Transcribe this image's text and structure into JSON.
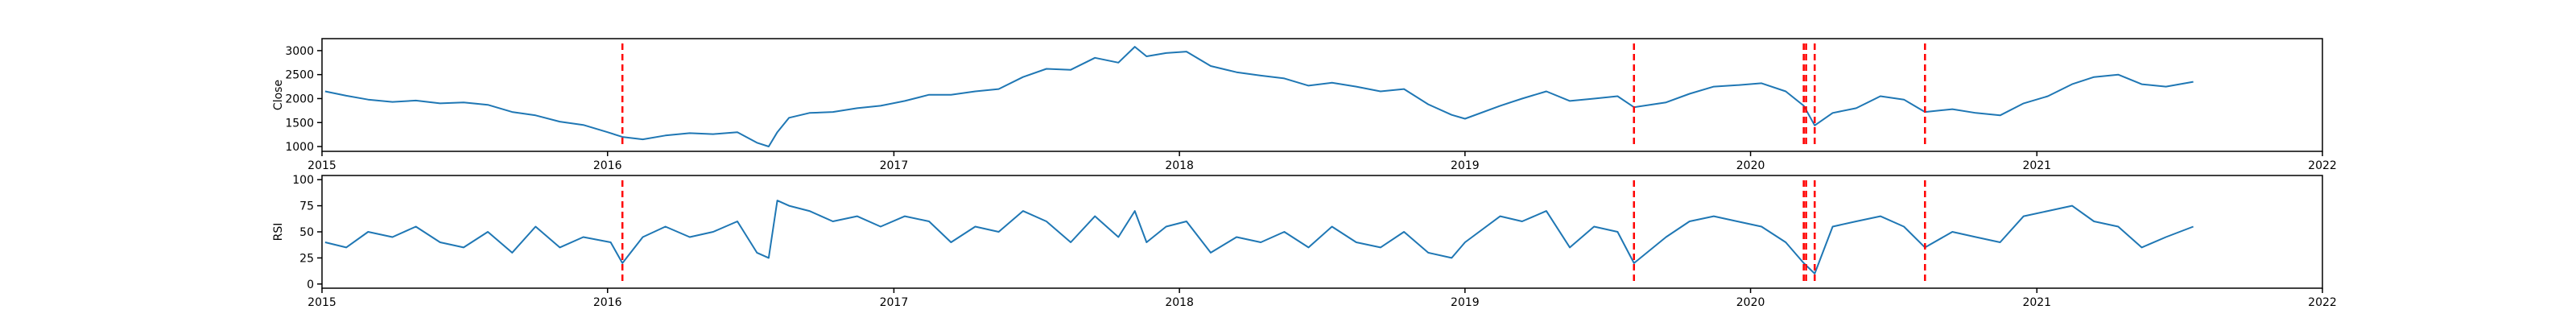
{
  "colors": {
    "series": "#1f77b4",
    "event": "#ff0000",
    "axes": "#000000",
    "background": "#ffffff"
  },
  "chart_data": [
    {
      "type": "line",
      "ylabel": "Close",
      "xlim": [
        "2015-01-01",
        "2022-01-01"
      ],
      "ylim": [
        900,
        3250
      ],
      "yticks": [
        1000,
        1500,
        2000,
        2500,
        3000
      ],
      "xticks": [
        {
          "date": "2015-01-01",
          "label": "2015"
        },
        {
          "date": "2016-01-01",
          "label": "2016"
        },
        {
          "date": "2017-01-01",
          "label": "2017"
        },
        {
          "date": "2018-01-01",
          "label": "2018"
        },
        {
          "date": "2019-01-01",
          "label": "2019"
        },
        {
          "date": "2020-01-01",
          "label": "2020"
        },
        {
          "date": "2021-01-01",
          "label": "2021"
        },
        {
          "date": "2022-01-01",
          "label": "2022"
        }
      ],
      "event_lines": [
        "2016-01-20",
        "2019-08-05",
        "2020-03-09",
        "2020-03-12",
        "2020-03-23",
        "2020-08-11"
      ],
      "series": [
        {
          "points": [
            [
              "2015-01-05",
              2150
            ],
            [
              "2015-02-01",
              2060
            ],
            [
              "2015-03-01",
              1980
            ],
            [
              "2015-04-01",
              1930
            ],
            [
              "2015-05-01",
              1960
            ],
            [
              "2015-06-01",
              1900
            ],
            [
              "2015-07-01",
              1920
            ],
            [
              "2015-08-01",
              1870
            ],
            [
              "2015-09-01",
              1720
            ],
            [
              "2015-10-01",
              1650
            ],
            [
              "2015-11-01",
              1520
            ],
            [
              "2015-12-01",
              1450
            ],
            [
              "2016-01-01",
              1300
            ],
            [
              "2016-01-20",
              1200
            ],
            [
              "2016-02-15",
              1150
            ],
            [
              "2016-03-15",
              1230
            ],
            [
              "2016-04-15",
              1280
            ],
            [
              "2016-05-15",
              1260
            ],
            [
              "2016-06-15",
              1300
            ],
            [
              "2016-07-10",
              1080
            ],
            [
              "2016-07-25",
              1000
            ],
            [
              "2016-08-05",
              1300
            ],
            [
              "2016-08-20",
              1600
            ],
            [
              "2016-09-15",
              1700
            ],
            [
              "2016-10-15",
              1720
            ],
            [
              "2016-11-15",
              1800
            ],
            [
              "2016-12-15",
              1850
            ],
            [
              "2017-01-15",
              1950
            ],
            [
              "2017-02-15",
              2080
            ],
            [
              "2017-03-15",
              2080
            ],
            [
              "2017-04-15",
              2150
            ],
            [
              "2017-05-15",
              2200
            ],
            [
              "2017-06-15",
              2450
            ],
            [
              "2017-07-15",
              2620
            ],
            [
              "2017-08-15",
              2600
            ],
            [
              "2017-09-15",
              2850
            ],
            [
              "2017-10-15",
              2750
            ],
            [
              "2017-11-05",
              3080
            ],
            [
              "2017-11-20",
              2880
            ],
            [
              "2017-12-15",
              2950
            ],
            [
              "2018-01-10",
              2980
            ],
            [
              "2018-02-10",
              2680
            ],
            [
              "2018-03-15",
              2550
            ],
            [
              "2018-04-15",
              2480
            ],
            [
              "2018-05-15",
              2420
            ],
            [
              "2018-06-15",
              2270
            ],
            [
              "2018-07-15",
              2330
            ],
            [
              "2018-08-15",
              2250
            ],
            [
              "2018-09-15",
              2150
            ],
            [
              "2018-10-15",
              2200
            ],
            [
              "2018-11-15",
              1880
            ],
            [
              "2018-12-15",
              1660
            ],
            [
              "2019-01-01",
              1580
            ],
            [
              "2019-02-15",
              1850
            ],
            [
              "2019-03-15",
              2000
            ],
            [
              "2019-04-15",
              2150
            ],
            [
              "2019-05-15",
              1950
            ],
            [
              "2019-06-15",
              2000
            ],
            [
              "2019-07-15",
              2050
            ],
            [
              "2019-08-05",
              1820
            ],
            [
              "2019-09-15",
              1920
            ],
            [
              "2019-10-15",
              2100
            ],
            [
              "2019-11-15",
              2250
            ],
            [
              "2019-12-15",
              2280
            ],
            [
              "2020-01-15",
              2320
            ],
            [
              "2020-02-15",
              2150
            ],
            [
              "2020-03-09",
              1850
            ],
            [
              "2020-03-23",
              1440
            ],
            [
              "2020-04-15",
              1700
            ],
            [
              "2020-05-15",
              1800
            ],
            [
              "2020-06-15",
              2050
            ],
            [
              "2020-07-15",
              1980
            ],
            [
              "2020-08-11",
              1720
            ],
            [
              "2020-09-15",
              1780
            ],
            [
              "2020-10-15",
              1700
            ],
            [
              "2020-11-15",
              1650
            ],
            [
              "2020-12-15",
              1900
            ],
            [
              "2021-01-15",
              2050
            ],
            [
              "2021-02-15",
              2300
            ],
            [
              "2021-03-15",
              2450
            ],
            [
              "2021-04-15",
              2500
            ],
            [
              "2021-05-15",
              2300
            ],
            [
              "2021-06-15",
              2250
            ],
            [
              "2021-07-20",
              2350
            ]
          ]
        }
      ]
    },
    {
      "type": "line",
      "ylabel": "RSI",
      "xlim": [
        "2015-01-01",
        "2022-01-01"
      ],
      "ylim": [
        -4,
        104
      ],
      "yticks": [
        0,
        25,
        50,
        75,
        100
      ],
      "xticks": [
        {
          "date": "2015-01-01",
          "label": "2015"
        },
        {
          "date": "2016-01-01",
          "label": "2016"
        },
        {
          "date": "2017-01-01",
          "label": "2017"
        },
        {
          "date": "2018-01-01",
          "label": "2018"
        },
        {
          "date": "2019-01-01",
          "label": "2019"
        },
        {
          "date": "2020-01-01",
          "label": "2020"
        },
        {
          "date": "2021-01-01",
          "label": "2021"
        },
        {
          "date": "2022-01-01",
          "label": "2022"
        }
      ],
      "event_lines": [
        "2016-01-20",
        "2019-08-05",
        "2020-03-09",
        "2020-03-12",
        "2020-03-23",
        "2020-08-11"
      ],
      "series": [
        {
          "points": [
            [
              "2015-01-05",
              40
            ],
            [
              "2015-02-01",
              35
            ],
            [
              "2015-03-01",
              50
            ],
            [
              "2015-04-01",
              45
            ],
            [
              "2015-05-01",
              55
            ],
            [
              "2015-06-01",
              40
            ],
            [
              "2015-07-01",
              35
            ],
            [
              "2015-08-01",
              50
            ],
            [
              "2015-09-01",
              30
            ],
            [
              "2015-10-01",
              55
            ],
            [
              "2015-11-01",
              35
            ],
            [
              "2015-12-01",
              45
            ],
            [
              "2016-01-05",
              40
            ],
            [
              "2016-01-20",
              20
            ],
            [
              "2016-02-15",
              45
            ],
            [
              "2016-03-15",
              55
            ],
            [
              "2016-04-15",
              45
            ],
            [
              "2016-05-15",
              50
            ],
            [
              "2016-06-15",
              60
            ],
            [
              "2016-07-10",
              30
            ],
            [
              "2016-07-25",
              25
            ],
            [
              "2016-08-05",
              80
            ],
            [
              "2016-08-20",
              75
            ],
            [
              "2016-09-15",
              70
            ],
            [
              "2016-10-15",
              60
            ],
            [
              "2016-11-15",
              65
            ],
            [
              "2016-12-15",
              55
            ],
            [
              "2017-01-15",
              65
            ],
            [
              "2017-02-15",
              60
            ],
            [
              "2017-03-15",
              40
            ],
            [
              "2017-04-15",
              55
            ],
            [
              "2017-05-15",
              50
            ],
            [
              "2017-06-15",
              70
            ],
            [
              "2017-07-15",
              60
            ],
            [
              "2017-08-15",
              40
            ],
            [
              "2017-09-15",
              65
            ],
            [
              "2017-10-15",
              45
            ],
            [
              "2017-11-05",
              70
            ],
            [
              "2017-11-20",
              40
            ],
            [
              "2017-12-15",
              55
            ],
            [
              "2018-01-10",
              60
            ],
            [
              "2018-02-10",
              30
            ],
            [
              "2018-03-15",
              45
            ],
            [
              "2018-04-15",
              40
            ],
            [
              "2018-05-15",
              50
            ],
            [
              "2018-06-15",
              35
            ],
            [
              "2018-07-15",
              55
            ],
            [
              "2018-08-15",
              40
            ],
            [
              "2018-09-15",
              35
            ],
            [
              "2018-10-15",
              50
            ],
            [
              "2018-11-15",
              30
            ],
            [
              "2018-12-15",
              25
            ],
            [
              "2019-01-01",
              40
            ],
            [
              "2019-02-15",
              65
            ],
            [
              "2019-03-15",
              60
            ],
            [
              "2019-04-15",
              70
            ],
            [
              "2019-05-15",
              35
            ],
            [
              "2019-06-15",
              55
            ],
            [
              "2019-07-15",
              50
            ],
            [
              "2019-08-05",
              20
            ],
            [
              "2019-09-15",
              45
            ],
            [
              "2019-10-15",
              60
            ],
            [
              "2019-11-15",
              65
            ],
            [
              "2019-12-15",
              60
            ],
            [
              "2020-01-15",
              55
            ],
            [
              "2020-02-15",
              40
            ],
            [
              "2020-03-09",
              20
            ],
            [
              "2020-03-23",
              10
            ],
            [
              "2020-04-15",
              55
            ],
            [
              "2020-05-15",
              60
            ],
            [
              "2020-06-15",
              65
            ],
            [
              "2020-07-15",
              55
            ],
            [
              "2020-08-11",
              35
            ],
            [
              "2020-09-15",
              50
            ],
            [
              "2020-10-15",
              45
            ],
            [
              "2020-11-15",
              40
            ],
            [
              "2020-12-15",
              65
            ],
            [
              "2021-01-15",
              70
            ],
            [
              "2021-02-15",
              75
            ],
            [
              "2021-03-15",
              60
            ],
            [
              "2021-04-15",
              55
            ],
            [
              "2021-05-15",
              35
            ],
            [
              "2021-06-15",
              45
            ],
            [
              "2021-07-20",
              55
            ]
          ]
        }
      ]
    }
  ]
}
